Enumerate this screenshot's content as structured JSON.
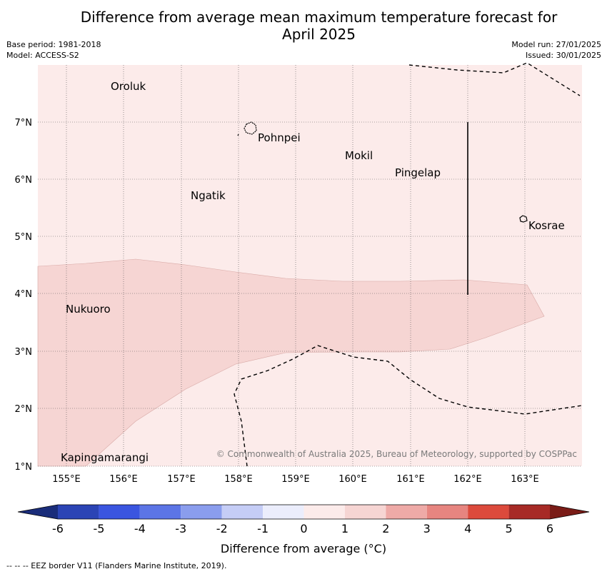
{
  "title": {
    "line1": "Difference from average mean maximum temperature forecast for",
    "line2": "April 2025"
  },
  "meta": {
    "base_period": "Base period: 1981-2018",
    "model": "Model: ACCESS-S2",
    "model_run": "Model run: 27/01/2025",
    "issued": "Issued: 30/01/2025"
  },
  "axes": {
    "lon_labels": [
      "155°E",
      "156°E",
      "157°E",
      "158°E",
      "159°E",
      "160°E",
      "161°E",
      "162°E",
      "163°E"
    ],
    "lat_labels": [
      "7°N",
      "6°N",
      "5°N",
      "4°N",
      "3°N",
      "2°N",
      "1°N"
    ]
  },
  "places": [
    {
      "name": "Oroluk"
    },
    {
      "name": "Pohnpei"
    },
    {
      "name": "Mokil"
    },
    {
      "name": "Pingelap"
    },
    {
      "name": "Ngatik"
    },
    {
      "name": "Kosrae"
    },
    {
      "name": "Nukuoro"
    },
    {
      "name": "Kapingamarangi"
    }
  ],
  "credit": "© Commonwealth of Australia 2025, Bureau of Meteorology, supported by COSPPac",
  "colorbar": {
    "ticks": [
      "-6",
      "-5",
      "-4",
      "-3",
      "-2",
      "-1",
      "0",
      "1",
      "2",
      "3",
      "4",
      "5",
      "6"
    ],
    "colors": [
      "#2b44b5",
      "#3a55e0",
      "#5c75e6",
      "#8a9ded",
      "#c5cdf6",
      "#ebedfc",
      "#fcebea",
      "#f6d5d3",
      "#eeaaa7",
      "#e78580",
      "#dc4a3c",
      "#a72a26"
    ],
    "under_color": "#1a2d7a",
    "over_color": "#7a1c17",
    "label": "Difference from average (°C)"
  },
  "legend_footer": "--  --  -- EEZ border V11 (Flanders Marine Institute, 2019).",
  "map_colors": {
    "background": "#fcebea",
    "band": "#f6d5d3"
  }
}
